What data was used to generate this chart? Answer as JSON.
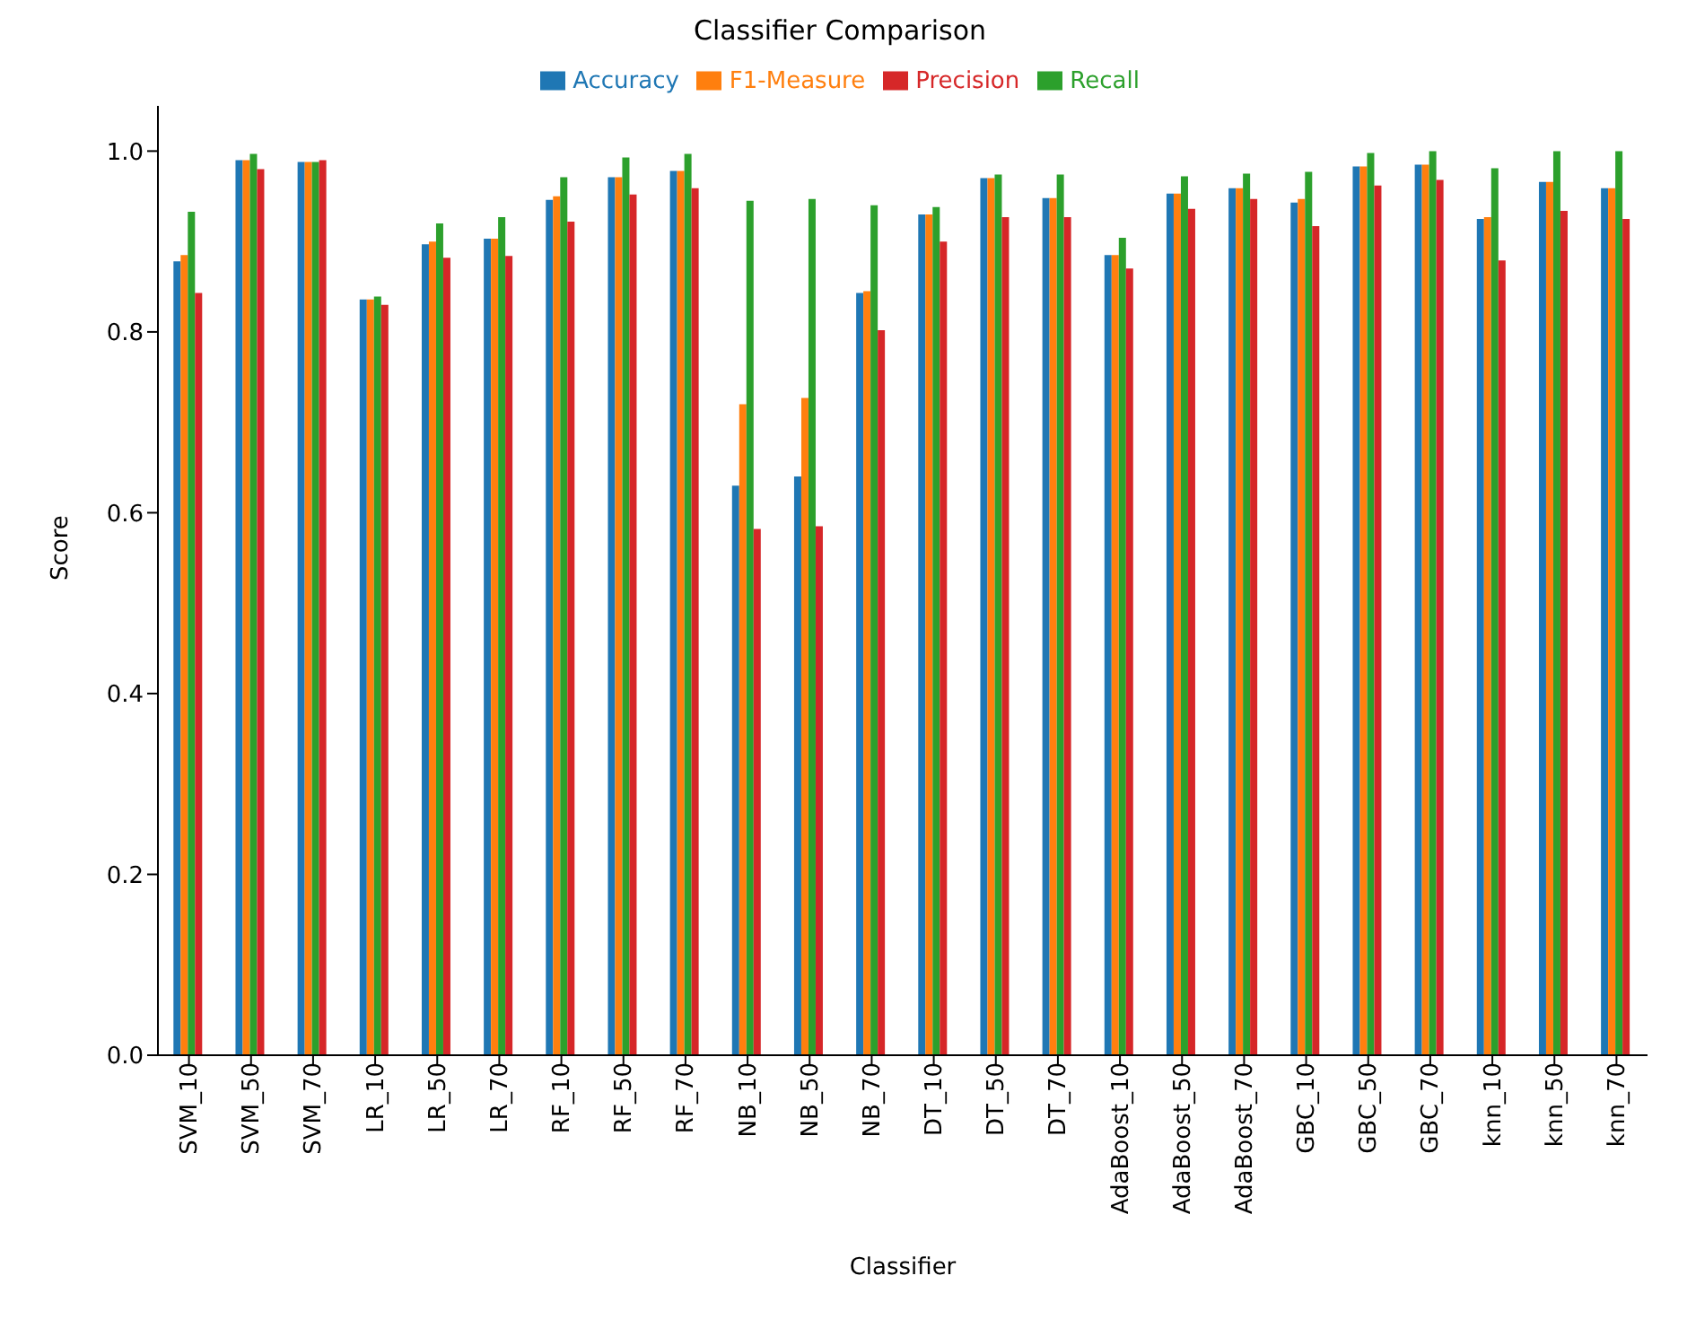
{
  "chart_data": {
    "type": "bar",
    "title": "Classifier Comparison",
    "xlabel": "Classifier",
    "ylabel": "Score",
    "categories": [
      "SVM_10",
      "SVM_50",
      "SVM_70",
      "LR_10",
      "LR_50",
      "LR_70",
      "RF_10",
      "RF_50",
      "RF_70",
      "NB_10",
      "NB_50",
      "NB_70",
      "DT_10",
      "DT_50",
      "DT_70",
      "AdaBoost_10",
      "AdaBoost_50",
      "AdaBoost_70",
      "GBC_10",
      "GBC_50",
      "GBC_70",
      "knn_10",
      "knn_50",
      "knn_70"
    ],
    "series": [
      {
        "name": "Accuracy",
        "color": "#1f77b4",
        "values": [
          0.878,
          0.99,
          0.988,
          0.836,
          0.897,
          0.903,
          0.946,
          0.971,
          0.978,
          0.63,
          0.64,
          0.843,
          0.93,
          0.97,
          0.948,
          0.885,
          0.953,
          0.959,
          0.943,
          0.983,
          0.985,
          0.925,
          0.966,
          0.959
        ]
      },
      {
        "name": "F1-Measure",
        "color": "#ff7f0e",
        "values": [
          0.885,
          0.99,
          0.988,
          0.836,
          0.9,
          0.903,
          0.95,
          0.971,
          0.978,
          0.72,
          0.727,
          0.845,
          0.93,
          0.97,
          0.948,
          0.885,
          0.953,
          0.959,
          0.947,
          0.983,
          0.985,
          0.927,
          0.966,
          0.959
        ]
      },
      {
        "name": "Recall",
        "color": "#2ca02c",
        "values": [
          0.933,
          0.997,
          0.988,
          0.839,
          0.92,
          0.927,
          0.971,
          0.993,
          0.997,
          0.945,
          0.947,
          0.94,
          0.938,
          0.974,
          0.974,
          0.904,
          0.972,
          0.975,
          0.977,
          0.998,
          1.0,
          0.981,
          1.0,
          1.0
        ]
      },
      {
        "name": "Precision",
        "color": "#d62728",
        "values": [
          0.843,
          0.98,
          0.99,
          0.83,
          0.882,
          0.884,
          0.922,
          0.952,
          0.959,
          0.582,
          0.585,
          0.802,
          0.9,
          0.927,
          0.927,
          0.87,
          0.936,
          0.947,
          0.917,
          0.962,
          0.968,
          0.879,
          0.934,
          0.925
        ]
      }
    ],
    "ylim": [
      0,
      1.05
    ],
    "yticks": [
      {
        "value": 0,
        "label": "0.0"
      },
      {
        "value": 0.2,
        "label": "0.2"
      },
      {
        "value": 0.4,
        "label": "0.4"
      },
      {
        "value": 0.6,
        "label": "0.6"
      },
      {
        "value": 0.8,
        "label": "0.8"
      },
      {
        "value": 1,
        "label": "1.0"
      }
    ],
    "grid": false,
    "legend": "top"
  }
}
